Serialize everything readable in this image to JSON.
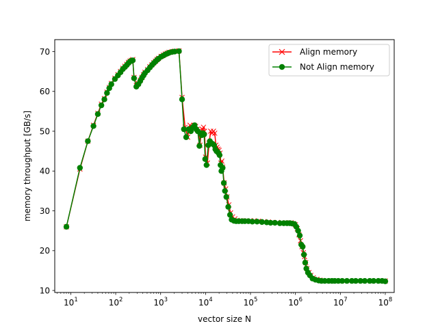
{
  "chart_data": {
    "type": "line",
    "title": "",
    "xlabel": "vector size N",
    "ylabel": "memory throughput [GB/s]",
    "xscale": "log",
    "xlim": [
      4.4,
      158000000
    ],
    "ylim": [
      9.5,
      73.0
    ],
    "x_ticks": [
      {
        "value": 10,
        "mantissa": "10",
        "exp": "1"
      },
      {
        "value": 100,
        "mantissa": "10",
        "exp": "2"
      },
      {
        "value": 1000,
        "mantissa": "10",
        "exp": "3"
      },
      {
        "value": 10000,
        "mantissa": "10",
        "exp": "4"
      },
      {
        "value": 100000,
        "mantissa": "10",
        "exp": "5"
      },
      {
        "value": 1000000,
        "mantissa": "10",
        "exp": "6"
      },
      {
        "value": 10000000,
        "mantissa": "10",
        "exp": "7"
      },
      {
        "value": 100000000,
        "mantissa": "10",
        "exp": "8"
      }
    ],
    "y_ticks": [
      10,
      20,
      30,
      40,
      50,
      60,
      70
    ],
    "grid": false,
    "legend_position": "top-right",
    "series": [
      {
        "name": "Align memory",
        "color": "#ff0000",
        "marker": "x",
        "points": [
          [
            8,
            26
          ],
          [
            16,
            40.5
          ],
          [
            24,
            47.5
          ],
          [
            32,
            51.5
          ],
          [
            40,
            54.5
          ],
          [
            48,
            56.8
          ],
          [
            56,
            58.2
          ],
          [
            64,
            59.8
          ],
          [
            72,
            61
          ],
          [
            80,
            62
          ],
          [
            96,
            63.3
          ],
          [
            112,
            64.2
          ],
          [
            128,
            65
          ],
          [
            144,
            65.8
          ],
          [
            160,
            66.3
          ],
          [
            176,
            66.8
          ],
          [
            192,
            67.3
          ],
          [
            208,
            67.6
          ],
          [
            224,
            67.8
          ],
          [
            240,
            68
          ],
          [
            256,
            63.5
          ],
          [
            288,
            61.5
          ],
          [
            320,
            62
          ],
          [
            352,
            62.8
          ],
          [
            384,
            63.5
          ],
          [
            416,
            64.2
          ],
          [
            448,
            64.8
          ],
          [
            512,
            65.5
          ],
          [
            576,
            66.2
          ],
          [
            640,
            66.7
          ],
          [
            704,
            67.2
          ],
          [
            768,
            67.6
          ],
          [
            832,
            68
          ],
          [
            896,
            68.3
          ],
          [
            1024,
            68.8
          ],
          [
            1152,
            69.1
          ],
          [
            1280,
            69.4
          ],
          [
            1408,
            69.6
          ],
          [
            1536,
            69.8
          ],
          [
            1792,
            70
          ],
          [
            2048,
            70.1
          ],
          [
            2560,
            70.2
          ],
          [
            3000,
            58.5
          ],
          [
            3500,
            51
          ],
          [
            4000,
            48.5
          ],
          [
            4500,
            51.5
          ],
          [
            5000,
            51
          ],
          [
            5500,
            51.5
          ],
          [
            6000,
            51.2
          ],
          [
            6500,
            50.5
          ],
          [
            7000,
            50
          ],
          [
            7500,
            46.5
          ],
          [
            8000,
            49.5
          ],
          [
            8500,
            50.5
          ],
          [
            9000,
            51
          ],
          [
            9500,
            50
          ],
          [
            10000,
            43.5
          ],
          [
            11000,
            42
          ],
          [
            12000,
            47
          ],
          [
            13000,
            50
          ],
          [
            14000,
            49.5
          ],
          [
            15000,
            50
          ],
          [
            16000,
            49.5
          ],
          [
            17000,
            46.5
          ],
          [
            18000,
            46
          ],
          [
            19000,
            45.5
          ],
          [
            20000,
            45.2
          ],
          [
            21000,
            44.5
          ],
          [
            22000,
            42
          ],
          [
            23000,
            42.5
          ],
          [
            24000,
            41
          ],
          [
            26000,
            37
          ],
          [
            28000,
            35.5
          ],
          [
            30000,
            33.5
          ],
          [
            33000,
            31.5
          ],
          [
            36000,
            29.5
          ],
          [
            40000,
            28.5
          ],
          [
            45000,
            28
          ],
          [
            50000,
            27.6
          ],
          [
            60000,
            27.5
          ],
          [
            70000,
            27.5
          ],
          [
            80000,
            27.5
          ],
          [
            100000,
            27.5
          ],
          [
            120000,
            27.5
          ],
          [
            150000,
            27.4
          ],
          [
            200000,
            27.3
          ],
          [
            250000,
            27.2
          ],
          [
            300000,
            27.1
          ],
          [
            400000,
            27.1
          ],
          [
            500000,
            27
          ],
          [
            600000,
            27
          ],
          [
            700000,
            27
          ],
          [
            800000,
            27
          ],
          [
            900000,
            26.8
          ],
          [
            1000000,
            26.5
          ],
          [
            1100000,
            25.5
          ],
          [
            1200000,
            24
          ],
          [
            1300000,
            22.5
          ],
          [
            1400000,
            21
          ],
          [
            1500000,
            19.5
          ],
          [
            1600000,
            18.5
          ],
          [
            1700000,
            17
          ],
          [
            1800000,
            15.5
          ],
          [
            2000000,
            14.5
          ],
          [
            2200000,
            13.8
          ],
          [
            2500000,
            13.2
          ],
          [
            3000000,
            12.8
          ],
          [
            3500000,
            12.6
          ],
          [
            4000000,
            12.5
          ],
          [
            5000000,
            12.4
          ],
          [
            6000000,
            12.4
          ],
          [
            7000000,
            12.4
          ],
          [
            8000000,
            12.4
          ],
          [
            10000000,
            12.4
          ],
          [
            13000000,
            12.4
          ],
          [
            16000000,
            12.4
          ],
          [
            20000000,
            12.4
          ],
          [
            25000000,
            12.4
          ],
          [
            32000000,
            12.4
          ],
          [
            40000000,
            12.4
          ],
          [
            50000000,
            12.4
          ],
          [
            64000000,
            12.4
          ],
          [
            80000000,
            12.4
          ],
          [
            100000000,
            12.4
          ]
        ]
      },
      {
        "name": "Not Align memory",
        "color": "#008000",
        "marker": "o",
        "points": [
          [
            8,
            26
          ],
          [
            16,
            40.8
          ],
          [
            24,
            47.5
          ],
          [
            32,
            51.3
          ],
          [
            40,
            54.3
          ],
          [
            48,
            56.5
          ],
          [
            56,
            58
          ],
          [
            64,
            59.6
          ],
          [
            72,
            60.8
          ],
          [
            80,
            61.8
          ],
          [
            96,
            63.1
          ],
          [
            112,
            64
          ],
          [
            128,
            64.8
          ],
          [
            144,
            65.6
          ],
          [
            160,
            66.1
          ],
          [
            176,
            66.6
          ],
          [
            192,
            67.1
          ],
          [
            208,
            67.5
          ],
          [
            224,
            67.7
          ],
          [
            240,
            67.8
          ],
          [
            256,
            63.3
          ],
          [
            288,
            61.2
          ],
          [
            320,
            61.8
          ],
          [
            352,
            62.6
          ],
          [
            384,
            63.4
          ],
          [
            416,
            64
          ],
          [
            448,
            64.6
          ],
          [
            512,
            65.3
          ],
          [
            576,
            66
          ],
          [
            640,
            66.6
          ],
          [
            704,
            67.1
          ],
          [
            768,
            67.5
          ],
          [
            832,
            67.9
          ],
          [
            896,
            68.2
          ],
          [
            1024,
            68.7
          ],
          [
            1152,
            69
          ],
          [
            1280,
            69.3
          ],
          [
            1408,
            69.5
          ],
          [
            1536,
            69.7
          ],
          [
            1792,
            69.9
          ],
          [
            2048,
            70
          ],
          [
            2560,
            70.1
          ],
          [
            3000,
            58
          ],
          [
            3300,
            50.5
          ],
          [
            3700,
            48.5
          ],
          [
            4200,
            50.5
          ],
          [
            4700,
            50
          ],
          [
            5200,
            51
          ],
          [
            5700,
            51.5
          ],
          [
            6200,
            50.5
          ],
          [
            6700,
            50
          ],
          [
            7300,
            46.3
          ],
          [
            7800,
            49.5
          ],
          [
            8300,
            49
          ],
          [
            8800,
            49.5
          ],
          [
            9300,
            49.2
          ],
          [
            9800,
            43
          ],
          [
            10500,
            41.5
          ],
          [
            11500,
            46.5
          ],
          [
            12500,
            47.5
          ],
          [
            13500,
            47
          ],
          [
            14500,
            46.8
          ],
          [
            15500,
            46.5
          ],
          [
            16500,
            45.5
          ],
          [
            17500,
            45
          ],
          [
            18500,
            44.8
          ],
          [
            19500,
            44.5
          ],
          [
            20500,
            44
          ],
          [
            21500,
            41.5
          ],
          [
            22500,
            40
          ],
          [
            24000,
            40.8
          ],
          [
            25500,
            37
          ],
          [
            27000,
            35
          ],
          [
            29000,
            33.5
          ],
          [
            32000,
            31
          ],
          [
            35000,
            29
          ],
          [
            38000,
            27.8
          ],
          [
            43000,
            27.5
          ],
          [
            48000,
            27.4
          ],
          [
            55000,
            27.4
          ],
          [
            65000,
            27.4
          ],
          [
            75000,
            27.4
          ],
          [
            90000,
            27.4
          ],
          [
            110000,
            27.3
          ],
          [
            140000,
            27.3
          ],
          [
            180000,
            27.2
          ],
          [
            230000,
            27.1
          ],
          [
            280000,
            27
          ],
          [
            350000,
            27
          ],
          [
            450000,
            26.9
          ],
          [
            550000,
            26.9
          ],
          [
            650000,
            26.9
          ],
          [
            750000,
            26.9
          ],
          [
            850000,
            26.8
          ],
          [
            950000,
            26.7
          ],
          [
            1050000,
            26
          ],
          [
            1150000,
            25
          ],
          [
            1250000,
            23.8
          ],
          [
            1350000,
            21.5
          ],
          [
            1450000,
            21
          ],
          [
            1550000,
            19
          ],
          [
            1650000,
            17
          ],
          [
            1750000,
            15.5
          ],
          [
            1900000,
            14.5
          ],
          [
            2100000,
            13.8
          ],
          [
            2400000,
            13
          ],
          [
            2800000,
            12.7
          ],
          [
            3300000,
            12.5
          ],
          [
            3800000,
            12.4
          ],
          [
            4500000,
            12.4
          ],
          [
            5500000,
            12.4
          ],
          [
            6500000,
            12.4
          ],
          [
            7500000,
            12.4
          ],
          [
            9000000,
            12.4
          ],
          [
            11000000,
            12.4
          ],
          [
            14000000,
            12.4
          ],
          [
            18000000,
            12.4
          ],
          [
            22000000,
            12.4
          ],
          [
            28000000,
            12.4
          ],
          [
            35000000,
            12.4
          ],
          [
            45000000,
            12.4
          ],
          [
            55000000,
            12.4
          ],
          [
            70000000,
            12.4
          ],
          [
            85000000,
            12.4
          ],
          [
            100000000,
            12.3
          ]
        ]
      }
    ]
  }
}
